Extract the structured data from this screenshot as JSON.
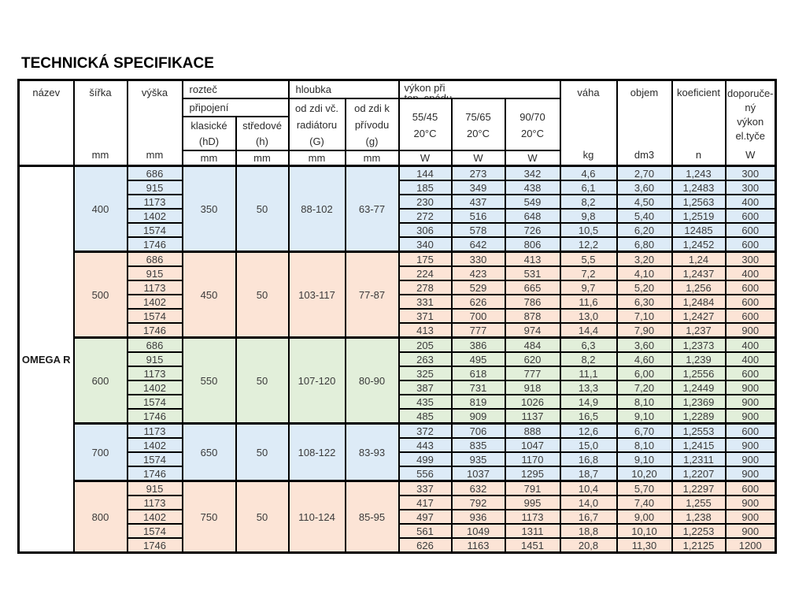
{
  "title": "TECHNICKÁ SPECIFIKACE",
  "product": "OMEGA R",
  "colors": {
    "group_blue": "#DDEBF7",
    "group_peach": "#FCE4D6",
    "group_green": "#E2EFDA",
    "border": "#000000"
  },
  "header": {
    "nazev": "název",
    "sirka": "šířka",
    "vyska": "výška",
    "roztec": "rozteč",
    "pripojeni": "připojení",
    "klasicke": "klasické\n(hD)",
    "stredove": "středové\n(h)",
    "hloubka": "hloubka",
    "od_zdi_vc": "od zdi  vč.\nradiátoru\n(G)",
    "od_zdi_k": "od zdi  k\npřívodu\n(g)",
    "vykon_pri": "výkon při\ntep. spádu",
    "t5545": "55/45\n20°C",
    "t7565": "75/65\n20°C",
    "t9070": "90/70\n20°C",
    "vaha": "váha",
    "objem": "objem",
    "koeficient": "koeficient",
    "doporuceny": "doporuče-\nný\nvýkon\nel.tyče"
  },
  "units": {
    "mm": "mm",
    "w": "W",
    "kg": "kg",
    "dm3": "dm3",
    "n": "n",
    "none": ""
  },
  "groups": [
    {
      "sirka": "400",
      "klasicke": "350",
      "stredove": "50",
      "hloubka_G": "88-102",
      "hloubka_g": "63-77",
      "rows": [
        {
          "h": "686",
          "p1": "144",
          "p2": "273",
          "p3": "342",
          "kg": "4,6",
          "dm3": "2,70",
          "n": "1,243",
          "el": "300"
        },
        {
          "h": "915",
          "p1": "185",
          "p2": "349",
          "p3": "438",
          "kg": "6,1",
          "dm3": "3,60",
          "n": "1,2483",
          "el": "300"
        },
        {
          "h": "1173",
          "p1": "230",
          "p2": "437",
          "p3": "549",
          "kg": "8,2",
          "dm3": "4,50",
          "n": "1,2563",
          "el": "400"
        },
        {
          "h": "1402",
          "p1": "272",
          "p2": "516",
          "p3": "648",
          "kg": "9,8",
          "dm3": "5,40",
          "n": "1,2519",
          "el": "600"
        },
        {
          "h": "1574",
          "p1": "306",
          "p2": "578",
          "p3": "726",
          "kg": "10,5",
          "dm3": "6,20",
          "n": "12485",
          "el": "600"
        },
        {
          "h": "1746",
          "p1": "340",
          "p2": "642",
          "p3": "806",
          "kg": "12,2",
          "dm3": "6,80",
          "n": "1,2452",
          "el": "600"
        }
      ]
    },
    {
      "sirka": "500",
      "klasicke": "450",
      "stredove": "50",
      "hloubka_G": "103-117",
      "hloubka_g": "77-87",
      "rows": [
        {
          "h": "686",
          "p1": "175",
          "p2": "330",
          "p3": "413",
          "kg": "5,5",
          "dm3": "3,20",
          "n": "1,24",
          "el": "300"
        },
        {
          "h": "915",
          "p1": "224",
          "p2": "423",
          "p3": "531",
          "kg": "7,2",
          "dm3": "4,10",
          "n": "1,2437",
          "el": "400"
        },
        {
          "h": "1173",
          "p1": "278",
          "p2": "529",
          "p3": "665",
          "kg": "9,7",
          "dm3": "5,20",
          "n": "1,256",
          "el": "600"
        },
        {
          "h": "1402",
          "p1": "331",
          "p2": "626",
          "p3": "786",
          "kg": "11,6",
          "dm3": "6,30",
          "n": "1,2484",
          "el": "600"
        },
        {
          "h": "1574",
          "p1": "371",
          "p2": "700",
          "p3": "878",
          "kg": "13,0",
          "dm3": "7,10",
          "n": "1,2427",
          "el": "600"
        },
        {
          "h": "1746",
          "p1": "413",
          "p2": "777",
          "p3": "974",
          "kg": "14,4",
          "dm3": "7,90",
          "n": "1,237",
          "el": "900"
        }
      ]
    },
    {
      "sirka": "600",
      "klasicke": "550",
      "stredove": "50",
      "hloubka_G": "107-120",
      "hloubka_g": "80-90",
      "rows": [
        {
          "h": "686",
          "p1": "205",
          "p2": "386",
          "p3": "484",
          "kg": "6,3",
          "dm3": "3,60",
          "n": "1,2373",
          "el": "400"
        },
        {
          "h": "915",
          "p1": "263",
          "p2": "495",
          "p3": "620",
          "kg": "8,2",
          "dm3": "4,60",
          "n": "1,239",
          "el": "400"
        },
        {
          "h": "1173",
          "p1": "325",
          "p2": "618",
          "p3": "777",
          "kg": "11,1",
          "dm3": "6,00",
          "n": "1,2556",
          "el": "600"
        },
        {
          "h": "1402",
          "p1": "387",
          "p2": "731",
          "p3": "918",
          "kg": "13,3",
          "dm3": "7,20",
          "n": "1,2449",
          "el": "900"
        },
        {
          "h": "1574",
          "p1": "435",
          "p2": "819",
          "p3": "1026",
          "kg": "14,9",
          "dm3": "8,10",
          "n": "1,2369",
          "el": "900"
        },
        {
          "h": "1746",
          "p1": "485",
          "p2": "909",
          "p3": "1137",
          "kg": "16,5",
          "dm3": "9,10",
          "n": "1,2289",
          "el": "900"
        }
      ]
    },
    {
      "sirka": "700",
      "klasicke": "650",
      "stredove": "50",
      "hloubka_G": "108-122",
      "hloubka_g": "83-93",
      "rows": [
        {
          "h": "1173",
          "p1": "372",
          "p2": "706",
          "p3": "888",
          "kg": "12,6",
          "dm3": "6,70",
          "n": "1,2553",
          "el": "600"
        },
        {
          "h": "1402",
          "p1": "443",
          "p2": "835",
          "p3": "1047",
          "kg": "15,0",
          "dm3": "8,10",
          "n": "1,2415",
          "el": "900"
        },
        {
          "h": "1574",
          "p1": "499",
          "p2": "935",
          "p3": "1170",
          "kg": "16,8",
          "dm3": "9,10",
          "n": "1,2311",
          "el": "900"
        },
        {
          "h": "1746",
          "p1": "556",
          "p2": "1037",
          "p3": "1295",
          "kg": "18,7",
          "dm3": "10,20",
          "n": "1,2207",
          "el": "900"
        }
      ]
    },
    {
      "sirka": "800",
      "klasicke": "750",
      "stredove": "50",
      "hloubka_G": "110-124",
      "hloubka_g": "85-95",
      "rows": [
        {
          "h": "915",
          "p1": "337",
          "p2": "632",
          "p3": "791",
          "kg": "10,4",
          "dm3": "5,70",
          "n": "1,2297",
          "el": "600"
        },
        {
          "h": "1173",
          "p1": "417",
          "p2": "792",
          "p3": "995",
          "kg": "14,0",
          "dm3": "7,40",
          "n": "1,255",
          "el": "900"
        },
        {
          "h": "1402",
          "p1": "497",
          "p2": "936",
          "p3": "1173",
          "kg": "16,7",
          "dm3": "9,00",
          "n": "1,238",
          "el": "900"
        },
        {
          "h": "1574",
          "p1": "561",
          "p2": "1049",
          "p3": "1311",
          "kg": "18,8",
          "dm3": "10,10",
          "n": "1,2253",
          "el": "900"
        },
        {
          "h": "1746",
          "p1": "626",
          "p2": "1163",
          "p3": "1451",
          "kg": "20,8",
          "dm3": "11,30",
          "n": "1,2125",
          "el": "1200"
        }
      ]
    }
  ]
}
